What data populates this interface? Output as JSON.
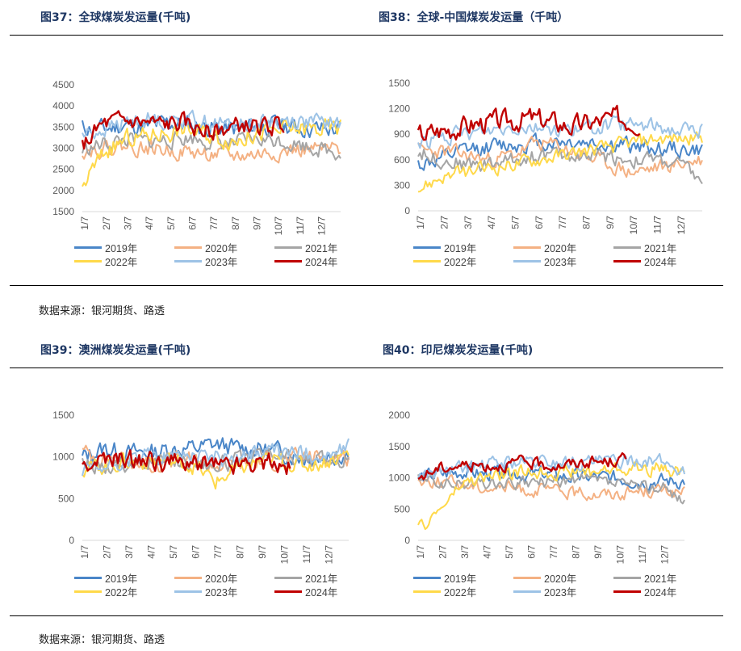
{
  "figures": [
    {
      "id": "fig37",
      "title": "图37：全球煤炭发运量(千吨)"
    },
    {
      "id": "fig38",
      "title": "图38：全球-中国煤炭发运量（千吨）"
    },
    {
      "id": "fig39",
      "title": "图39：澳洲煤炭发运量(千吨)"
    },
    {
      "id": "fig40",
      "title": "图40：印尼煤炭发运量(千吨)"
    }
  ],
  "source_text": "数据来源：银河期货、路透",
  "series_colors": {
    "2019年": "#4a86c8",
    "2020年": "#f4b183",
    "2021年": "#a5a5a5",
    "2022年": "#ffd94a",
    "2023年": "#9dc3e6",
    "2024年": "#c00000"
  },
  "chart_data": [
    {
      "id": "fig37",
      "type": "line",
      "title": "全球煤炭发运量(千吨)",
      "x_ticks": [
        "1/7",
        "2/7",
        "3/7",
        "4/7",
        "5/7",
        "6/7",
        "7/7",
        "8/7",
        "9/7",
        "10/7",
        "11/7",
        "12/7"
      ],
      "y_ticks": [
        "1500",
        "2000",
        "2500",
        "3000",
        "3500",
        "4000",
        "4500"
      ],
      "ylim": [
        1500,
        4500
      ],
      "series": [
        {
          "name": "2019年",
          "base": [
            3500,
            3450,
            3550,
            3500,
            3600,
            3550,
            3500,
            3450,
            3500,
            3550,
            3500,
            3450,
            3450
          ],
          "amp": 260,
          "seed": 11
        },
        {
          "name": "2020年",
          "base": [
            2950,
            3000,
            3050,
            3000,
            2950,
            2900,
            2850,
            2800,
            2850,
            2900,
            2950,
            2950,
            2950
          ],
          "amp": 220,
          "seed": 22
        },
        {
          "name": "2021年",
          "base": [
            2950,
            3100,
            3200,
            3150,
            3200,
            3250,
            3150,
            3100,
            3200,
            3200,
            3100,
            3000,
            2900
          ],
          "amp": 220,
          "seed": 33
        },
        {
          "name": "2022年",
          "base": [
            2100,
            2900,
            3200,
            3300,
            3400,
            3450,
            3300,
            3200,
            3350,
            3400,
            3450,
            3450,
            3500
          ],
          "amp": 260,
          "seed": 44
        },
        {
          "name": "2023年",
          "base": [
            3300,
            3450,
            3600,
            3700,
            3650,
            3700,
            3600,
            3550,
            3600,
            3650,
            3650,
            3600,
            3600
          ],
          "amp": 230,
          "seed": 55
        },
        {
          "name": "2024年",
          "base": [
            3050,
            3550,
            3650,
            3600,
            3550,
            3600,
            3400,
            3450,
            3550,
            3500,
            3550
          ],
          "amp": 250,
          "seed": 66,
          "x_end": 0.78
        }
      ]
    },
    {
      "id": "fig38",
      "type": "line",
      "title": "全球-中国煤炭发运量（千吨）",
      "x_ticks": [
        "1/7",
        "2/7",
        "3/7",
        "4/7",
        "5/7",
        "6/7",
        "7/7",
        "8/7",
        "9/7",
        "10/7",
        "11/7",
        "12/7"
      ],
      "y_ticks": [
        "0",
        "300",
        "600",
        "900",
        "1200",
        "1500"
      ],
      "ylim": [
        0,
        1500
      ],
      "series": [
        {
          "name": "2019年",
          "base": [
            550,
            600,
            700,
            750,
            780,
            800,
            820,
            800,
            780,
            760,
            740,
            720,
            700
          ],
          "amp": 120,
          "seed": 12
        },
        {
          "name": "2020年",
          "base": [
            700,
            700,
            650,
            600,
            650,
            800,
            750,
            650,
            550,
            450,
            500,
            550,
            600
          ],
          "amp": 110,
          "seed": 23
        },
        {
          "name": "2021年",
          "base": [
            700,
            600,
            550,
            550,
            600,
            650,
            650,
            650,
            650,
            600,
            600,
            550,
            350
          ],
          "amp": 110,
          "seed": 34
        },
        {
          "name": "2022年",
          "base": [
            250,
            400,
            450,
            500,
            550,
            600,
            650,
            700,
            750,
            800,
            850,
            850,
            850
          ],
          "amp": 100,
          "seed": 45
        },
        {
          "name": "2023年",
          "base": [
            800,
            850,
            900,
            950,
            1000,
            1000,
            950,
            950,
            1000,
            1000,
            1000,
            950,
            950
          ],
          "amp": 110,
          "seed": 56
        },
        {
          "name": "2024年",
          "base": [
            900,
            950,
            1000,
            1050,
            1050,
            1100,
            1050,
            1000,
            1050,
            1100,
            1050
          ],
          "amp": 150,
          "seed": 67,
          "x_end": 0.78
        }
      ]
    },
    {
      "id": "fig39",
      "type": "line",
      "title": "澳洲煤炭发运量(千吨)",
      "x_ticks": [
        "1/7",
        "2/7",
        "3/7",
        "4/7",
        "5/7",
        "6/7",
        "7/7",
        "8/7",
        "9/7",
        "10/7",
        "11/7",
        "12/7"
      ],
      "y_ticks": [
        "0",
        "500",
        "1000",
        "1500"
      ],
      "ylim": [
        0,
        1500
      ],
      "series": [
        {
          "name": "2019年",
          "base": [
            1000,
            1100,
            1050,
            1050,
            1100,
            1100,
            1150,
            1100,
            1100,
            1050,
            1000,
            1000,
            1050
          ],
          "amp": 130,
          "seed": 13
        },
        {
          "name": "2020年",
          "base": [
            1050,
            1000,
            950,
            900,
            950,
            950,
            900,
            900,
            950,
            950,
            1000,
            1000,
            1000
          ],
          "amp": 120,
          "seed": 24
        },
        {
          "name": "2021年",
          "base": [
            900,
            900,
            900,
            950,
            950,
            950,
            900,
            950,
            1000,
            1000,
            950,
            950,
            1000
          ],
          "amp": 120,
          "seed": 35
        },
        {
          "name": "2022年",
          "base": [
            850,
            900,
            950,
            950,
            950,
            900,
            700,
            850,
            950,
            950,
            900,
            950,
            1050
          ],
          "amp": 120,
          "seed": 46
        },
        {
          "name": "2023年",
          "base": [
            800,
            850,
            950,
            1000,
            1000,
            1050,
            1000,
            1000,
            1050,
            1050,
            1050,
            1000,
            1100
          ],
          "amp": 120,
          "seed": 57
        },
        {
          "name": "2024年",
          "base": [
            900,
            950,
            950,
            950,
            950,
            900,
            950,
            900,
            950,
            950,
            900
          ],
          "amp": 140,
          "seed": 68,
          "x_end": 0.78
        }
      ]
    },
    {
      "id": "fig40",
      "type": "line",
      "title": "印尼煤炭发运量(千吨)",
      "x_ticks": [
        "1/7",
        "2/7",
        "3/7",
        "4/7",
        "5/7",
        "6/7",
        "7/7",
        "8/7",
        "9/7",
        "10/7",
        "11/7",
        "12/7"
      ],
      "y_ticks": [
        "0",
        "500",
        "1000",
        "1500",
        "2000"
      ],
      "ylim": [
        0,
        2000
      ],
      "series": [
        {
          "name": "2019年",
          "base": [
            1000,
            1050,
            1100,
            1050,
            1100,
            1050,
            1050,
            1000,
            1000,
            1000,
            950,
            950,
            950
          ],
          "amp": 140,
          "seed": 14
        },
        {
          "name": "2020年",
          "base": [
            950,
            950,
            900,
            850,
            850,
            800,
            800,
            750,
            750,
            750,
            800,
            800,
            750
          ],
          "amp": 120,
          "seed": 25
        },
        {
          "name": "2021年",
          "base": [
            1000,
            900,
            900,
            900,
            900,
            900,
            950,
            950,
            950,
            900,
            850,
            850,
            650
          ],
          "amp": 120,
          "seed": 36
        },
        {
          "name": "2022年",
          "base": [
            150,
            500,
            900,
            1000,
            1050,
            1100,
            1100,
            1100,
            1100,
            1150,
            1150,
            1150,
            1100
          ],
          "amp": 130,
          "seed": 47
        },
        {
          "name": "2023年",
          "base": [
            1050,
            1100,
            1150,
            1200,
            1250,
            1250,
            1250,
            1250,
            1250,
            1250,
            1300,
            1250,
            1100
          ],
          "amp": 130,
          "seed": 58
        },
        {
          "name": "2024年",
          "base": [
            1000,
            1150,
            1200,
            1200,
            1200,
            1250,
            1200,
            1200,
            1250,
            1250,
            1300
          ],
          "amp": 110,
          "seed": 69,
          "x_end": 0.78
        }
      ]
    }
  ]
}
